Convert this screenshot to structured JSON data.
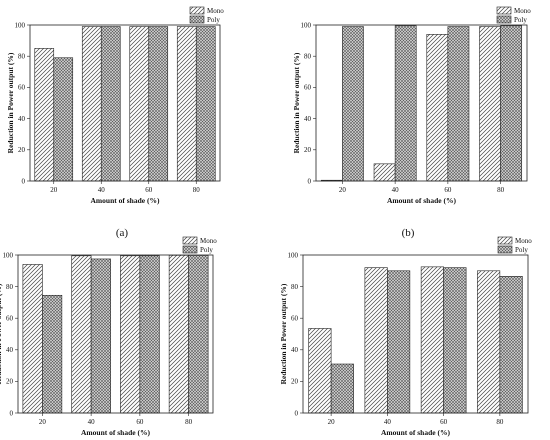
{
  "figure": {
    "panel_labels": [
      "(a)",
      "(b)"
    ]
  },
  "patterns": {
    "mono": "diagonal-hatch",
    "poly": "crosshatch"
  },
  "chart_data": [
    {
      "type": "bar",
      "categories": [
        "20",
        "40",
        "60",
        "80"
      ],
      "series": [
        {
          "name": "Mono",
          "values": [
            85,
            99,
            99,
            99
          ]
        },
        {
          "name": "Poly",
          "values": [
            79,
            99,
            99,
            99
          ]
        }
      ],
      "xlabel": "Amount of shade (%)",
      "ylabel": "Reduction in Power output (%)",
      "ylim": [
        0,
        100
      ],
      "yticks": [
        0,
        20,
        40,
        60,
        80,
        100
      ],
      "legend": "top-right",
      "grid": false
    },
    {
      "type": "bar",
      "categories": [
        "20",
        "40",
        "60",
        "80"
      ],
      "series": [
        {
          "name": "Mono",
          "values": [
            0.5,
            11,
            94,
            99
          ]
        },
        {
          "name": "Poly",
          "values": [
            99,
            99.5,
            99,
            99.5
          ]
        }
      ],
      "xlabel": "Amount of shade (%)",
      "ylabel": "Reduction in Power output (%)",
      "ylim": [
        0,
        100
      ],
      "yticks": [
        0,
        20,
        40,
        60,
        80,
        100
      ],
      "legend": "top-right",
      "grid": false
    },
    {
      "type": "bar",
      "categories": [
        "20",
        "40",
        "60",
        "80"
      ],
      "series": [
        {
          "name": "Mono",
          "values": [
            94,
            99.5,
            99.5,
            99.8
          ]
        },
        {
          "name": "Poly",
          "values": [
            74.5,
            97.5,
            99.5,
            99.8
          ]
        }
      ],
      "xlabel": "Amount of shade (%)",
      "ylabel": "Reduction in Power output (%)",
      "ylim": [
        0,
        100
      ],
      "yticks": [
        0,
        20,
        40,
        60,
        80,
        100
      ],
      "legend": "top-right",
      "grid": false
    },
    {
      "type": "bar",
      "categories": [
        "20",
        "40",
        "60",
        "80"
      ],
      "series": [
        {
          "name": "Mono",
          "values": [
            53.5,
            92,
            92.5,
            90
          ]
        },
        {
          "name": "Poly",
          "values": [
            31,
            90,
            92,
            86.5
          ]
        }
      ],
      "xlabel": "Amount of shade (%)",
      "ylabel": "Reduction in Power output (%)",
      "ylim": [
        0,
        100
      ],
      "yticks": [
        0,
        20,
        40,
        60,
        80,
        100
      ],
      "legend": "top-right",
      "grid": false
    }
  ]
}
